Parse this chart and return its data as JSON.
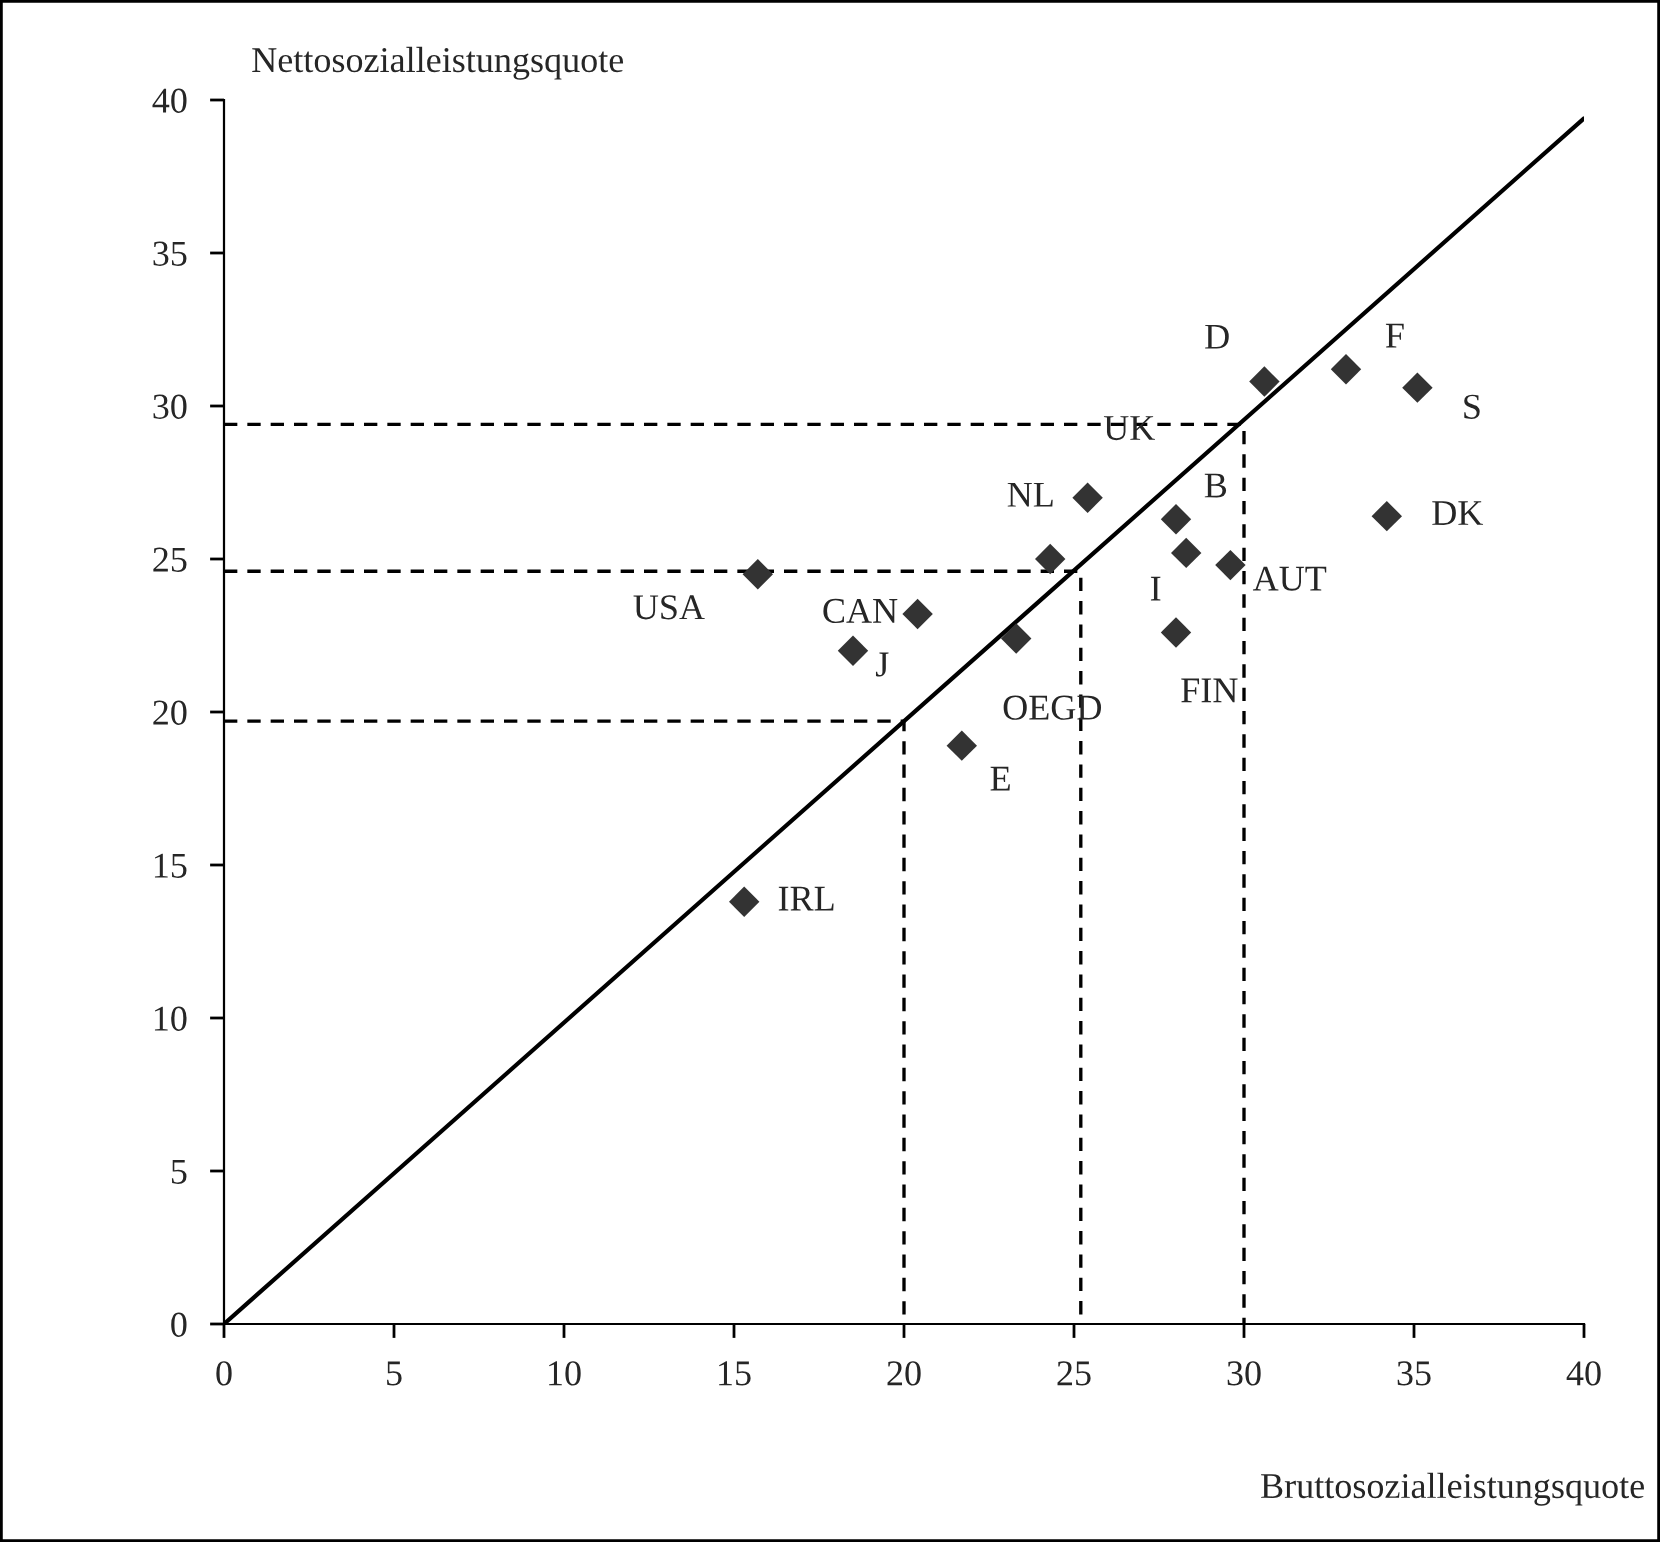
{
  "chart_data": {
    "type": "scatter",
    "xlabel": "Bruttosozialleistungsquote",
    "ylabel": "Nettosozialleistungsquote",
    "xlim": [
      0,
      40
    ],
    "ylim": [
      0,
      40
    ],
    "xticks": [
      0,
      5,
      10,
      15,
      20,
      25,
      30,
      35,
      40
    ],
    "yticks": [
      0,
      5,
      10,
      15,
      20,
      25,
      30,
      35,
      40
    ],
    "grid": false,
    "legend": false,
    "series": [
      {
        "color": "#333333",
        "marker": "diamond",
        "x": [
          15.3,
          15.7,
          18.5,
          20.4,
          21.7,
          23.3,
          24.3,
          25.4,
          28.0,
          28.3,
          29.6,
          28.0,
          30.6,
          33.0,
          35.1,
          34.2
        ],
        "values": [
          13.8,
          24.5,
          22.0,
          23.2,
          18.9,
          22.4,
          25.0,
          27.0,
          26.3,
          25.2,
          24.8,
          22.6,
          30.8,
          31.2,
          30.6,
          26.4
        ]
      },
      {
        "type": "line",
        "color": "#000000",
        "line_style": "solid",
        "marker": "none",
        "x": [
          0,
          40
        ],
        "values": [
          0,
          39.4
        ]
      },
      {
        "type": "line",
        "color": "#000000",
        "line_style": "dashed",
        "marker": "none",
        "x": [
          0,
          30,
          30
        ],
        "values": [
          29.4,
          29.4,
          0
        ]
      },
      {
        "type": "line",
        "color": "#000000",
        "line_style": "dashed",
        "marker": "none",
        "x": [
          0,
          25.2,
          25.2
        ],
        "values": [
          24.6,
          24.6,
          0
        ]
      },
      {
        "type": "line",
        "color": "#000000",
        "line_style": "dashed",
        "marker": "none",
        "x": [
          0,
          20,
          20
        ],
        "values": [
          19.7,
          19.7,
          0
        ]
      }
    ],
    "annotations": [
      {
        "text": "IRL",
        "x": 15.3,
        "y": 13.8
      },
      {
        "text": "USA",
        "x": 15.7,
        "y": 24.5
      },
      {
        "text": "J",
        "x": 18.5,
        "y": 22.0
      },
      {
        "text": "CAN",
        "x": 20.4,
        "y": 23.2
      },
      {
        "text": "E",
        "x": 21.7,
        "y": 18.9
      },
      {
        "text": "OEGD",
        "x": 23.3,
        "y": 22.4
      },
      {
        "text": "NL",
        "x": 24.3,
        "y": 25.0
      },
      {
        "text": "UK",
        "x": 25.4,
        "y": 27.0
      },
      {
        "text": "B",
        "x": 28.0,
        "y": 26.3
      },
      {
        "text": "I",
        "x": 28.3,
        "y": 25.2
      },
      {
        "text": "AUT",
        "x": 29.6,
        "y": 24.8
      },
      {
        "text": "FIN",
        "x": 28.0,
        "y": 22.6
      },
      {
        "text": "D",
        "x": 30.6,
        "y": 30.8
      },
      {
        "text": "F",
        "x": 33.0,
        "y": 31.2
      },
      {
        "text": "S",
        "x": 35.1,
        "y": 30.6
      },
      {
        "text": "DK",
        "x": 34.2,
        "y": 26.4
      }
    ]
  }
}
